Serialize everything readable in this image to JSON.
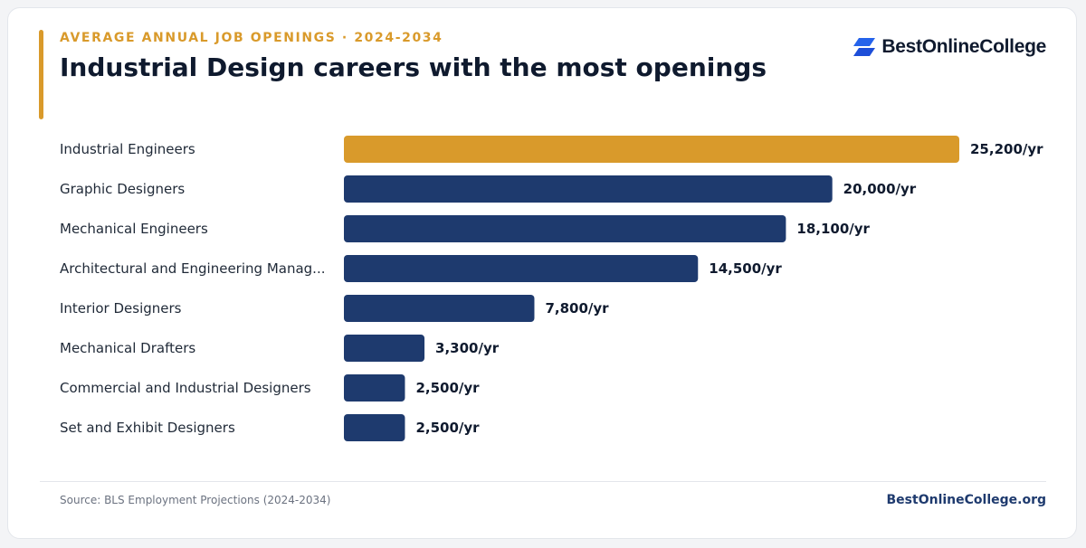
{
  "header": {
    "eyebrow": "AVERAGE ANNUAL JOB OPENINGS · 2024-2034",
    "title": "Industrial Design careers with the most openings"
  },
  "brand": {
    "logo_text": "BestOnlineCollege",
    "logo_icon": "stacked-parallelogram-logo-icon",
    "site": "BestOnlineCollege.org"
  },
  "footer": {
    "source": "Source: BLS Employment Projections (2024-2034)"
  },
  "colors": {
    "highlight": "#d99a2b",
    "bar": "#1e3a6e",
    "logo_blue": "#2563eb"
  },
  "chart_data": {
    "type": "bar",
    "orientation": "horizontal",
    "categories": [
      "Industrial Engineers",
      "Graphic Designers",
      "Mechanical Engineers",
      "Architectural and Engineering Manag...",
      "Interior Designers",
      "Mechanical Drafters",
      "Commercial and Industrial Designers",
      "Set and Exhibit Designers"
    ],
    "values": [
      25200,
      20000,
      18100,
      14500,
      7800,
      3300,
      2500,
      2500
    ],
    "value_labels": [
      "25,200/yr",
      "20,000/yr",
      "18,100/yr",
      "14,500/yr",
      "7,800/yr",
      "3,300/yr",
      "2,500/yr",
      "2,500/yr"
    ],
    "highlight_index": 0,
    "xlim": [
      0,
      25200
    ],
    "grid": false,
    "legend": "none"
  }
}
